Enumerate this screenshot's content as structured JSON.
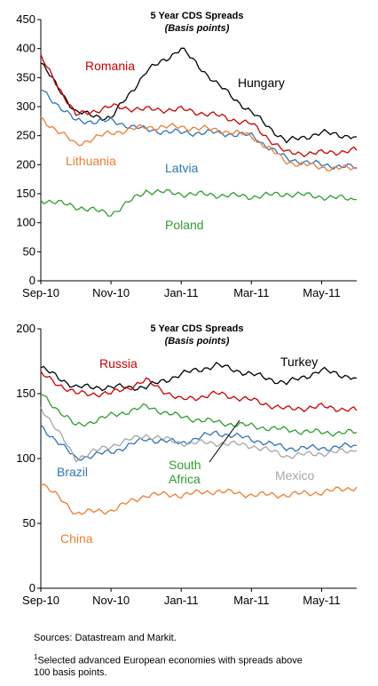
{
  "chart_data": [
    {
      "type": "line",
      "title": "5 Year CDS Spreads",
      "subtitle": "(Basis points)",
      "x_ticks": [
        "Sep-10",
        "Nov-10",
        "Jan-11",
        "Mar-11",
        "May-11"
      ],
      "x": [
        "Sep-10",
        "Oct-10",
        "Nov-10",
        "Dec-10",
        "Jan-11",
        "Feb-11",
        "Mar-11",
        "Apr-11",
        "May-11",
        "Jun-11"
      ],
      "ylim": [
        0,
        450
      ],
      "y_ticks": [
        0,
        50,
        100,
        150,
        200,
        250,
        300,
        350,
        400,
        450
      ],
      "grid": false,
      "series": [
        {
          "name": "Hungary",
          "color": "#000000",
          "values": [
            375,
            290,
            280,
            360,
            400,
            340,
            290,
            240,
            255,
            248
          ]
        },
        {
          "name": "Romania",
          "color": "#cc0000",
          "values": [
            385,
            285,
            300,
            295,
            295,
            285,
            270,
            220,
            220,
            225
          ]
        },
        {
          "name": "Latvia",
          "color": "#2e75b6",
          "values": [
            330,
            275,
            275,
            260,
            255,
            255,
            250,
            210,
            200,
            195
          ]
        },
        {
          "name": "Lithuania",
          "color": "#ed7d31",
          "values": [
            280,
            235,
            255,
            265,
            265,
            260,
            250,
            205,
            195,
            193
          ]
        },
        {
          "name": "Poland",
          "color": "#2e9e2e",
          "values": [
            140,
            128,
            115,
            155,
            150,
            148,
            145,
            150,
            145,
            140
          ]
        }
      ]
    },
    {
      "type": "line",
      "title": "5 Year CDS Spreads",
      "subtitle": "(Basis points)",
      "x_ticks": [
        "Sep-10",
        "Nov-10",
        "Jan-11",
        "Mar-11",
        "May-11"
      ],
      "x": [
        "Sep-10",
        "Oct-10",
        "Nov-10",
        "Dec-10",
        "Jan-11",
        "Feb-11",
        "Mar-11",
        "Apr-11",
        "May-11",
        "Jun-11"
      ],
      "ylim": [
        0,
        200
      ],
      "y_ticks": [
        0,
        50,
        100,
        150,
        200
      ],
      "grid": false,
      "series": [
        {
          "name": "Turkey",
          "color": "#000000",
          "values": [
            170,
            155,
            155,
            155,
            165,
            172,
            165,
            158,
            168,
            162
          ]
        },
        {
          "name": "Russia",
          "color": "#cc0000",
          "values": [
            165,
            150,
            150,
            160,
            145,
            150,
            145,
            138,
            140,
            137
          ]
        },
        {
          "name": "South Africa",
          "color": "#2e9e2e",
          "values": [
            150,
            125,
            133,
            140,
            132,
            128,
            125,
            122,
            120,
            120
          ]
        },
        {
          "name": "Brazil",
          "color": "#2e75b6",
          "values": [
            125,
            100,
            105,
            115,
            112,
            120,
            115,
            108,
            108,
            110
          ]
        },
        {
          "name": "Mexico",
          "color": "#a6a6a6",
          "values": [
            140,
            100,
            110,
            118,
            112,
            112,
            110,
            102,
            104,
            106
          ]
        },
        {
          "name": "China",
          "color": "#ed7d31",
          "values": [
            82,
            58,
            60,
            72,
            72,
            75,
            72,
            72,
            74,
            78
          ]
        }
      ]
    }
  ],
  "footnotes": {
    "sources": "Sources: Datastream and Markit.",
    "note_marker": "1",
    "note_line1": "Selected advanced European  economies with spreads above",
    "note_line2": "100 basis points."
  }
}
